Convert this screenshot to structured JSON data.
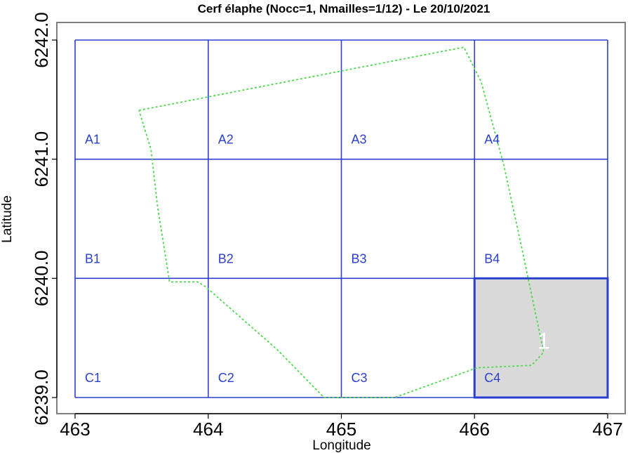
{
  "chart_data": {
    "type": "grid-map",
    "title": "Cerf élaphe (Nocc=1, Nmailles=1/12) - Le 20/10/2021",
    "xlabel": "Longitude",
    "ylabel": "Latitude",
    "xlim": [
      463,
      467
    ],
    "ylim": [
      6239.0,
      6242.0
    ],
    "x_ticks": [
      "463",
      "464",
      "465",
      "466",
      "467"
    ],
    "y_ticks": [
      "6239.0",
      "6240.0",
      "6241.0",
      "6242.0"
    ],
    "grid_color": "#2b3fcf",
    "boundary_color": "#4cd94c",
    "highlight_color": "#d9d9d9",
    "count_color": "#ffffff",
    "cells": [
      {
        "label": "A1",
        "x": 463,
        "y": 6241
      },
      {
        "label": "A2",
        "x": 464,
        "y": 6241
      },
      {
        "label": "A3",
        "x": 465,
        "y": 6241
      },
      {
        "label": "A4",
        "x": 466,
        "y": 6241
      },
      {
        "label": "B1",
        "x": 463,
        "y": 6240
      },
      {
        "label": "B2",
        "x": 464,
        "y": 6240
      },
      {
        "label": "B3",
        "x": 465,
        "y": 6240
      },
      {
        "label": "B4",
        "x": 466,
        "y": 6240
      },
      {
        "label": "C1",
        "x": 463,
        "y": 6239
      },
      {
        "label": "C2",
        "x": 464,
        "y": 6239
      },
      {
        "label": "C3",
        "x": 465,
        "y": 6239
      },
      {
        "label": "C4",
        "x": 466,
        "y": 6239
      }
    ],
    "occupied_cells": [
      {
        "cell": "C4",
        "count": "1",
        "count_x": 466.52,
        "count_y": 6239.46
      }
    ],
    "boundary": [
      [
        463.48,
        6241.41
      ],
      [
        465.92,
        6241.94
      ],
      [
        466.05,
        6241.65
      ],
      [
        466.22,
        6240.95
      ],
      [
        466.35,
        6240.28
      ],
      [
        466.45,
        6239.75
      ],
      [
        466.52,
        6239.38
      ],
      [
        466.43,
        6239.27
      ],
      [
        466.02,
        6239.25
      ],
      [
        465.4,
        6239.0
      ],
      [
        464.87,
        6239.0
      ],
      [
        464.52,
        6239.4
      ],
      [
        463.98,
        6239.93
      ],
      [
        463.92,
        6239.97
      ],
      [
        463.71,
        6239.97
      ],
      [
        463.62,
        6240.6
      ],
      [
        463.57,
        6241.08
      ],
      [
        463.48,
        6241.41
      ]
    ]
  }
}
